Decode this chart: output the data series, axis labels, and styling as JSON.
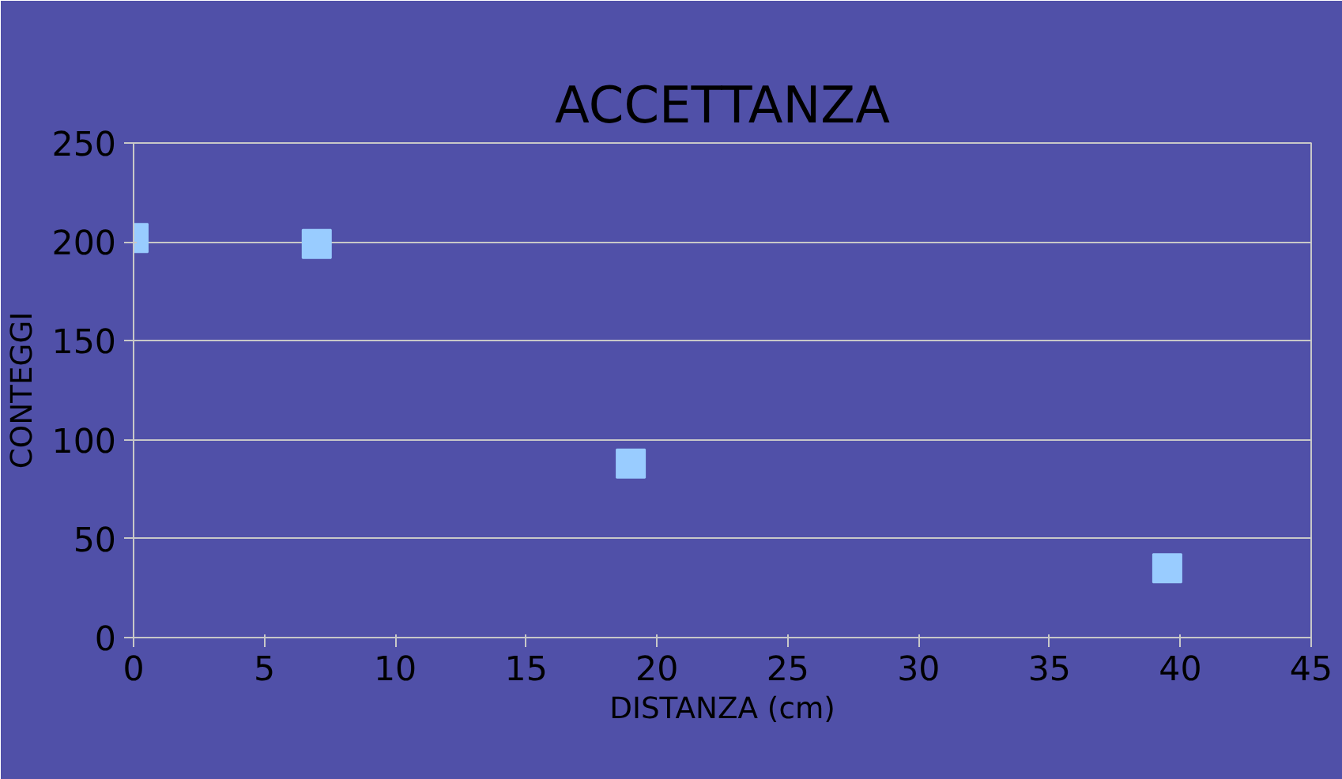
{
  "chart_data": {
    "type": "scatter",
    "title": "ACCETTANZA",
    "xlabel": "DISTANZA (cm)",
    "ylabel": "CONTEGGI",
    "x": [
      0,
      7,
      19,
      39.5
    ],
    "series": [
      {
        "color": "#99ccff",
        "values": [
          202,
          199,
          88,
          35
        ]
      }
    ],
    "xlim": [
      0,
      45
    ],
    "xticks": [
      0,
      5,
      10,
      15,
      20,
      25,
      30,
      35,
      40,
      45
    ],
    "ylim": [
      0,
      250
    ],
    "yticks": [
      0,
      50,
      100,
      150,
      200,
      250
    ],
    "grid": "y",
    "marker": "square"
  }
}
